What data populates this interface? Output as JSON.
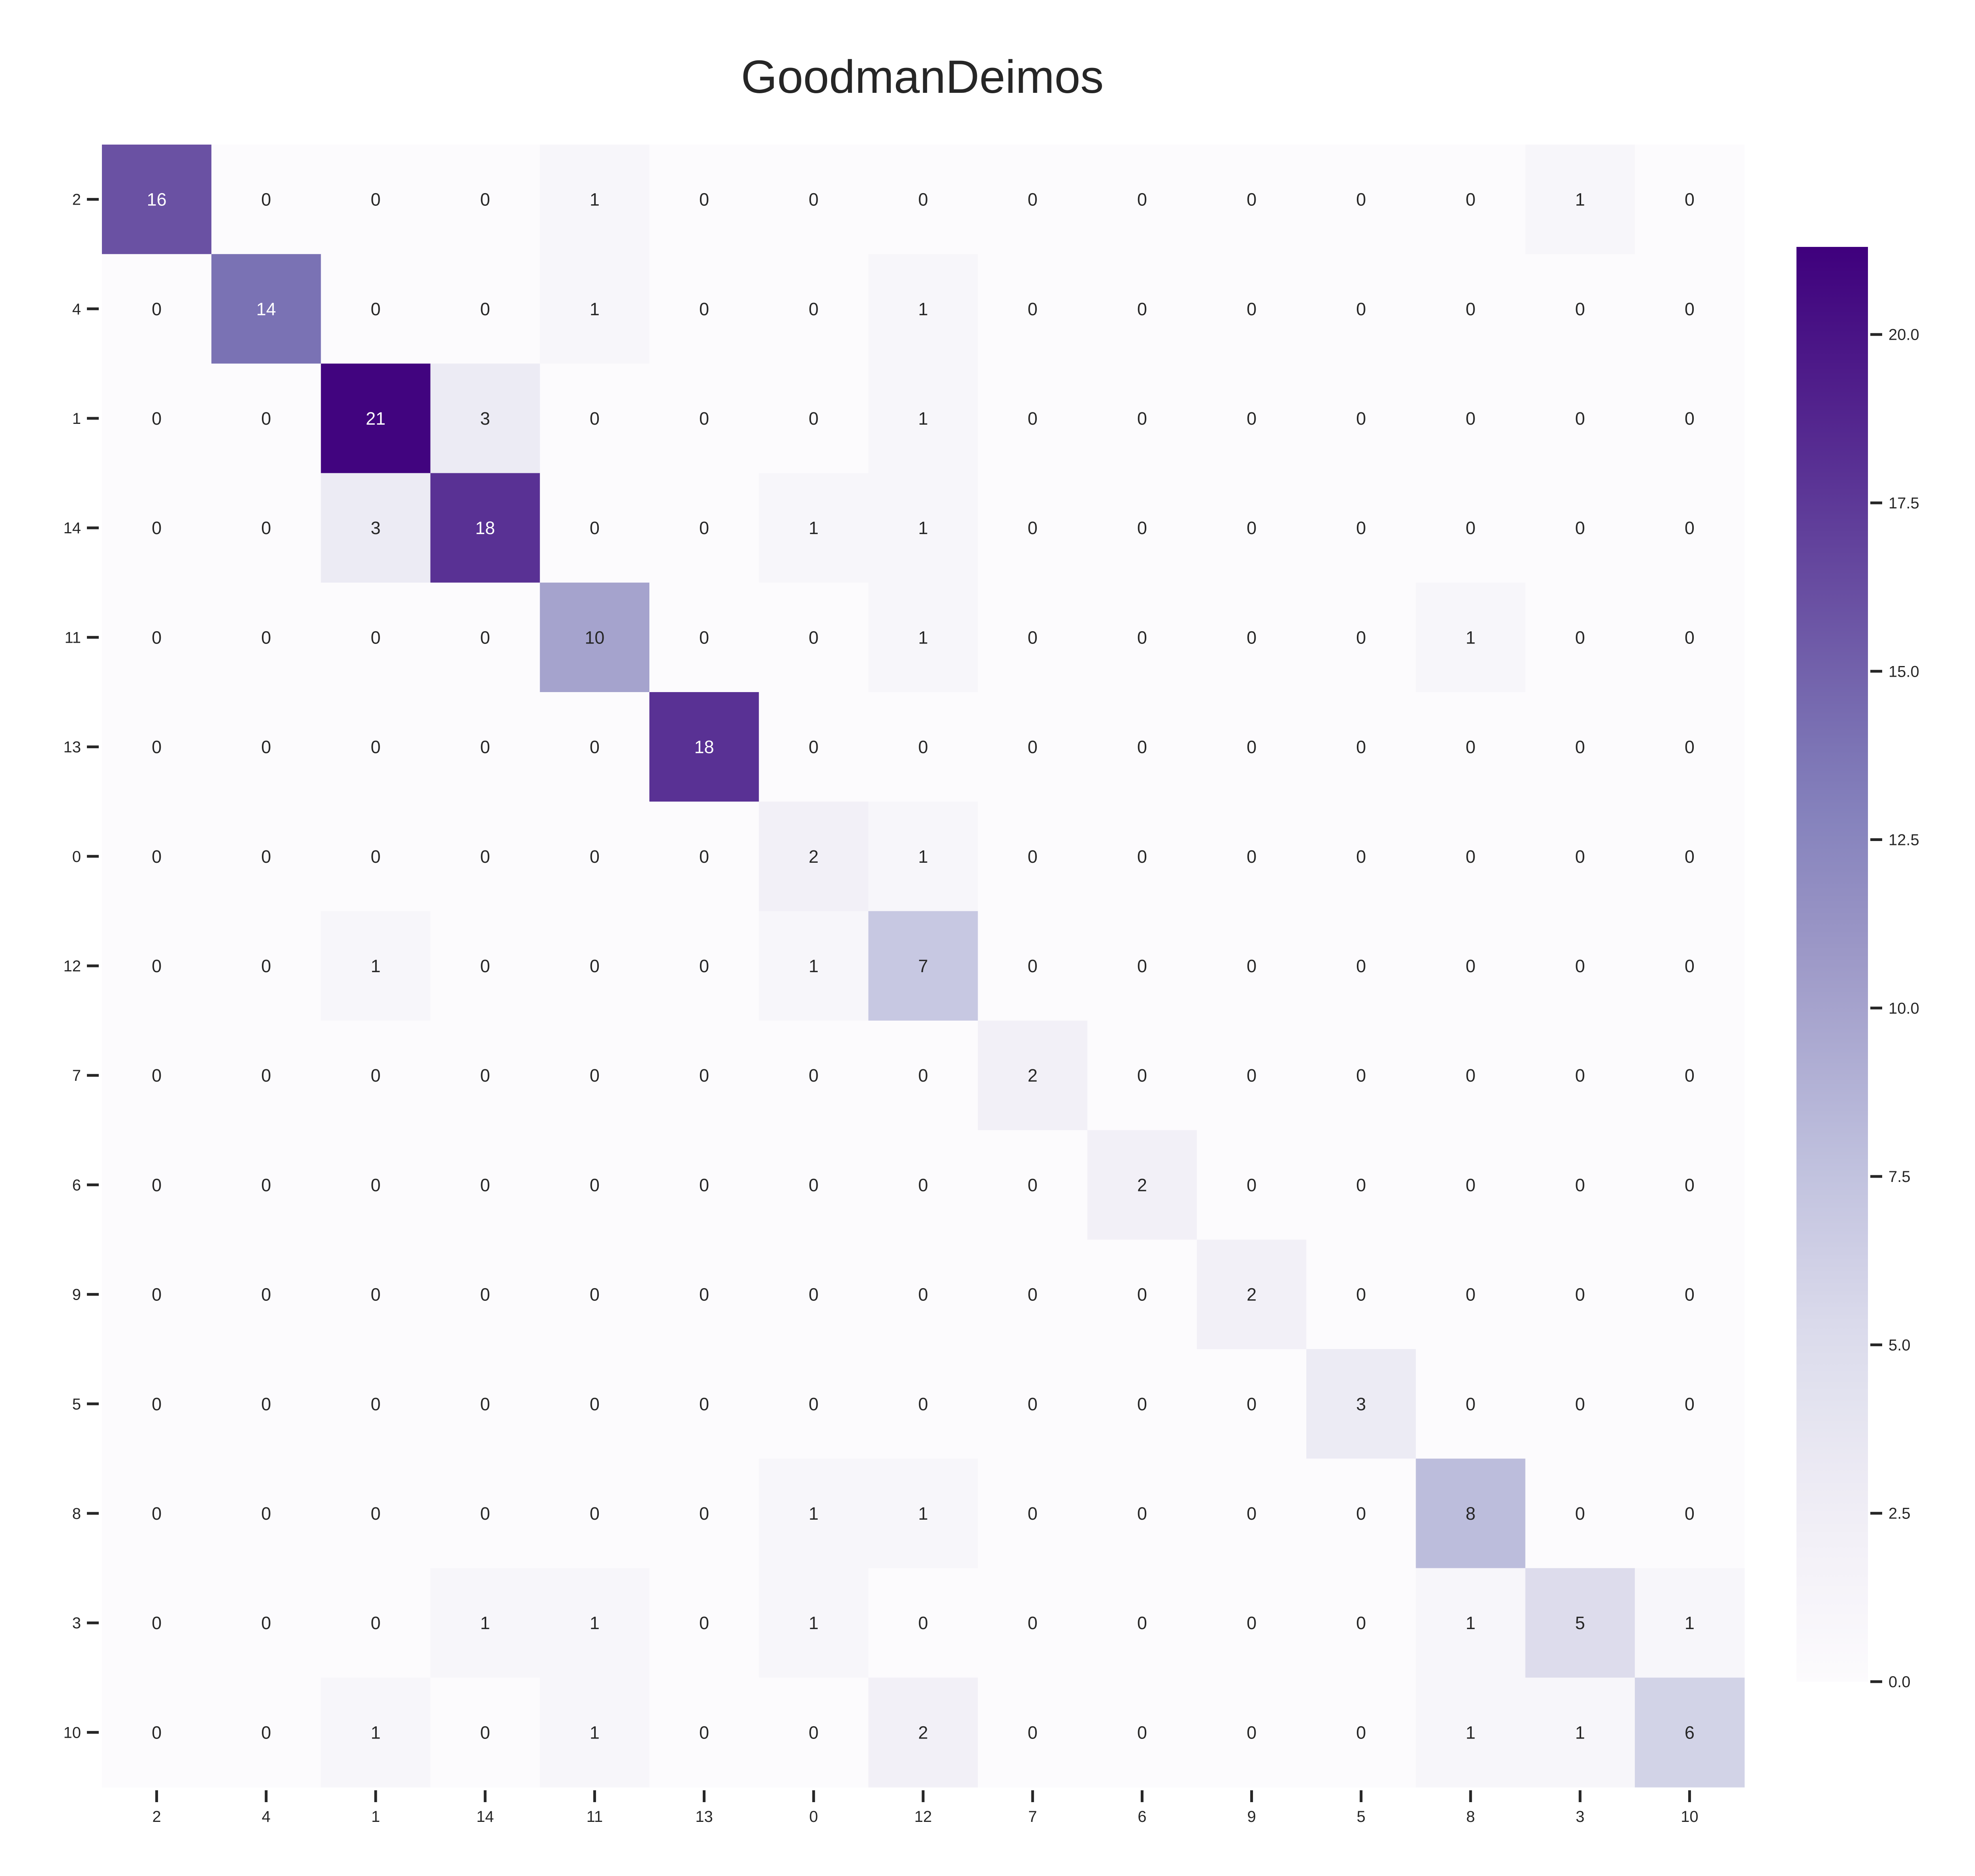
{
  "chart_data": {
    "type": "heatmap",
    "title": "GoodmanDeimos",
    "xlabel": "",
    "ylabel": "",
    "row_labels": [
      "2",
      "4",
      "1",
      "14",
      "11",
      "13",
      "0",
      "12",
      "7",
      "6",
      "9",
      "5",
      "8",
      "3",
      "10"
    ],
    "col_labels": [
      "2",
      "4",
      "1",
      "14",
      "11",
      "13",
      "0",
      "12",
      "7",
      "6",
      "9",
      "5",
      "8",
      "3",
      "10"
    ],
    "values": [
      [
        16,
        0,
        0,
        0,
        1,
        0,
        0,
        0,
        0,
        0,
        0,
        0,
        0,
        1,
        0
      ],
      [
        0,
        14,
        0,
        0,
        1,
        0,
        0,
        1,
        0,
        0,
        0,
        0,
        0,
        0,
        0
      ],
      [
        0,
        0,
        21,
        3,
        0,
        0,
        0,
        1,
        0,
        0,
        0,
        0,
        0,
        0,
        0
      ],
      [
        0,
        0,
        3,
        18,
        0,
        0,
        1,
        1,
        0,
        0,
        0,
        0,
        0,
        0,
        0
      ],
      [
        0,
        0,
        0,
        0,
        10,
        0,
        0,
        1,
        0,
        0,
        0,
        0,
        1,
        0,
        0
      ],
      [
        0,
        0,
        0,
        0,
        0,
        18,
        0,
        0,
        0,
        0,
        0,
        0,
        0,
        0,
        0
      ],
      [
        0,
        0,
        0,
        0,
        0,
        0,
        2,
        1,
        0,
        0,
        0,
        0,
        0,
        0,
        0
      ],
      [
        0,
        0,
        1,
        0,
        0,
        0,
        1,
        7,
        0,
        0,
        0,
        0,
        0,
        0,
        0
      ],
      [
        0,
        0,
        0,
        0,
        0,
        0,
        0,
        0,
        2,
        0,
        0,
        0,
        0,
        0,
        0
      ],
      [
        0,
        0,
        0,
        0,
        0,
        0,
        0,
        0,
        0,
        2,
        0,
        0,
        0,
        0,
        0
      ],
      [
        0,
        0,
        0,
        0,
        0,
        0,
        0,
        0,
        0,
        0,
        2,
        0,
        0,
        0,
        0
      ],
      [
        0,
        0,
        0,
        0,
        0,
        0,
        0,
        0,
        0,
        0,
        0,
        3,
        0,
        0,
        0
      ],
      [
        0,
        0,
        0,
        0,
        0,
        0,
        1,
        1,
        0,
        0,
        0,
        0,
        8,
        0,
        0
      ],
      [
        0,
        0,
        0,
        1,
        1,
        0,
        1,
        0,
        0,
        0,
        0,
        0,
        1,
        5,
        1
      ],
      [
        0,
        0,
        1,
        0,
        1,
        0,
        0,
        2,
        0,
        0,
        0,
        0,
        1,
        1,
        6
      ]
    ],
    "colormap": "Purples",
    "colormap_range": [
      0,
      21.3
    ],
    "colorbar_ticks": [
      "0.0",
      "2.5",
      "5.0",
      "7.5",
      "10.0",
      "12.5",
      "15.0",
      "17.5",
      "20.0"
    ],
    "colorbar_tick_values": [
      0,
      2.5,
      5,
      7.5,
      10,
      12.5,
      15,
      17.5,
      20
    ],
    "annotated": true,
    "grid": false,
    "legend": "colorbar-right"
  }
}
